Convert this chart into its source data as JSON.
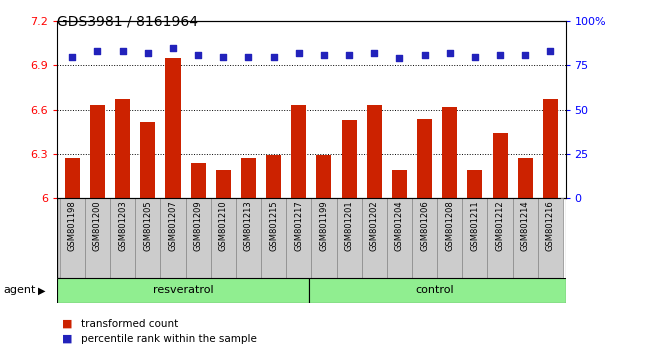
{
  "title": "GDS3981 / 8161964",
  "samples": [
    "GSM801198",
    "GSM801200",
    "GSM801203",
    "GSM801205",
    "GSM801207",
    "GSM801209",
    "GSM801210",
    "GSM801213",
    "GSM801215",
    "GSM801217",
    "GSM801199",
    "GSM801201",
    "GSM801202",
    "GSM801204",
    "GSM801206",
    "GSM801208",
    "GSM801211",
    "GSM801212",
    "GSM801214",
    "GSM801216"
  ],
  "transformed_count": [
    6.27,
    6.63,
    6.67,
    6.52,
    6.95,
    6.24,
    6.19,
    6.27,
    6.29,
    6.63,
    6.29,
    6.53,
    6.63,
    6.19,
    6.54,
    6.62,
    6.19,
    6.44,
    6.27,
    6.67
  ],
  "percentile_rank": [
    80,
    83,
    83,
    82,
    85,
    81,
    80,
    80,
    80,
    82,
    81,
    81,
    82,
    79,
    81,
    82,
    80,
    81,
    81,
    83
  ],
  "resveratrol_count": 10,
  "control_count": 10,
  "ylim_left": [
    6.0,
    7.2
  ],
  "ylim_right": [
    0,
    100
  ],
  "yticks_left": [
    6.0,
    6.3,
    6.6,
    6.9,
    7.2
  ],
  "yticks_right": [
    0,
    25,
    50,
    75,
    100
  ],
  "bar_color": "#CC2200",
  "dot_color": "#2222BB",
  "sample_box_color": "#CCCCCC",
  "green_bar_color": "#90EE90",
  "agent_label": "agent",
  "resveratrol_label": "resveratrol",
  "control_label": "control",
  "legend_bar_label": "transformed count",
  "legend_dot_label": "percentile rank within the sample"
}
